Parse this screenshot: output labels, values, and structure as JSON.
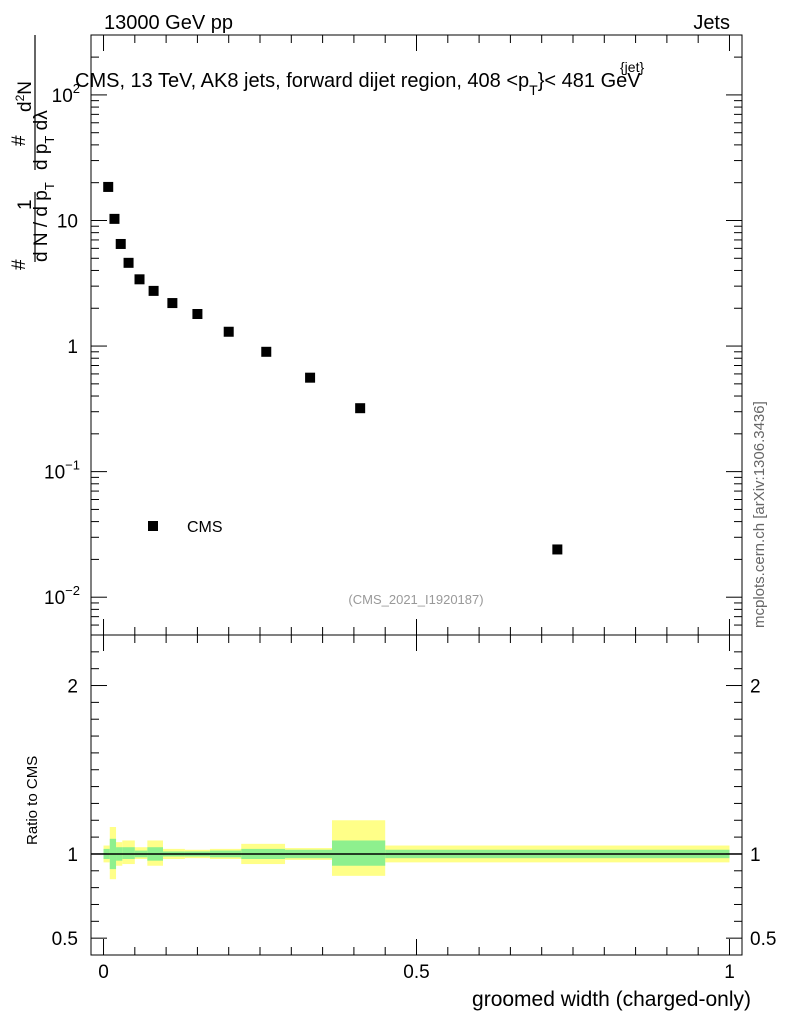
{
  "header": {
    "left": "13000 GeV pp",
    "right": "Jets",
    "side_label": "mcplots.cern.ch [arXiv:1306.3436]"
  },
  "chart_data": [
    {
      "type": "scatter",
      "title_prefix": "CMS, 13 TeV, AK8 jets, forward dijet region, 408 <p",
      "title_sub": "T",
      "title_sup": "{jet}",
      "title_suffix": "}< 481 GeV",
      "ylabel": "# 1/(d N / d p_T #) d²N/(d p_T d λ)",
      "yscale": "log",
      "ylim": [
        0.005,
        300
      ],
      "xlim": [
        -0.02,
        1.02
      ],
      "yticks": [
        {
          "value": 0.01,
          "base": "10",
          "exp": "−2"
        },
        {
          "value": 0.1,
          "base": "10",
          "exp": "−1"
        },
        {
          "value": 1,
          "label": "1"
        },
        {
          "value": 10,
          "label": "10"
        },
        {
          "value": 100,
          "base": "10",
          "exp": "2"
        }
      ],
      "series": [
        {
          "name": "CMS",
          "marker": "square",
          "x": [
            0.0075,
            0.0175,
            0.0275,
            0.04,
            0.0575,
            0.08,
            0.11,
            0.15,
            0.2,
            0.26,
            0.33,
            0.41,
            0.725
          ],
          "y": [
            18.5,
            10.3,
            6.5,
            4.6,
            3.4,
            2.75,
            2.2,
            1.8,
            1.3,
            0.9,
            0.56,
            0.32,
            0.024
          ]
        }
      ],
      "legend": {
        "entries": [
          "CMS"
        ],
        "position": "bottom-left"
      },
      "watermark": "(CMS_2021_I1920187)"
    },
    {
      "type": "ratio",
      "ylabel": "Ratio to CMS",
      "xlabel": "groomed width (charged-only)",
      "ylim": [
        0.4,
        2.3
      ],
      "yticks": [
        {
          "value": 0.5,
          "label": "0.5"
        },
        {
          "value": 1,
          "label": "1"
        },
        {
          "value": 2,
          "label": "2"
        }
      ],
      "xticks": [
        {
          "value": 0,
          "label": "0"
        },
        {
          "value": 0.5,
          "label": "0.5"
        },
        {
          "value": 1,
          "label": "1"
        }
      ],
      "reference_line": 1,
      "bands": [
        {
          "x": [
            0.0,
            0.01
          ],
          "stat": [
            0.97,
            1.03
          ],
          "total": [
            0.95,
            1.05
          ]
        },
        {
          "x": [
            0.01,
            0.02
          ],
          "stat": [
            0.91,
            1.09
          ],
          "total": [
            0.85,
            1.16
          ]
        },
        {
          "x": [
            0.02,
            0.03
          ],
          "stat": [
            0.96,
            1.04
          ],
          "total": [
            0.93,
            1.07
          ]
        },
        {
          "x": [
            0.03,
            0.05
          ],
          "stat": [
            0.97,
            1.04
          ],
          "total": [
            0.94,
            1.08
          ]
        },
        {
          "x": [
            0.05,
            0.07
          ],
          "stat": [
            0.98,
            1.02
          ],
          "total": [
            0.97,
            1.04
          ]
        },
        {
          "x": [
            0.07,
            0.095
          ],
          "stat": [
            0.96,
            1.04
          ],
          "total": [
            0.93,
            1.08
          ]
        },
        {
          "x": [
            0.095,
            0.13
          ],
          "stat": [
            0.985,
            1.015
          ],
          "total": [
            0.97,
            1.03
          ]
        },
        {
          "x": [
            0.13,
            0.17
          ],
          "stat": [
            0.985,
            1.015
          ],
          "total": [
            0.975,
            1.025
          ]
        },
        {
          "x": [
            0.17,
            0.22
          ],
          "stat": [
            0.98,
            1.02
          ],
          "total": [
            0.97,
            1.03
          ]
        },
        {
          "x": [
            0.22,
            0.29
          ],
          "stat": [
            0.97,
            1.03
          ],
          "total": [
            0.94,
            1.06
          ]
        },
        {
          "x": [
            0.29,
            0.365
          ],
          "stat": [
            0.975,
            1.025
          ],
          "total": [
            0.965,
            1.035
          ]
        },
        {
          "x": [
            0.365,
            0.45
          ],
          "stat": [
            0.93,
            1.08
          ],
          "total": [
            0.87,
            1.2
          ]
        },
        {
          "x": [
            0.45,
            1.0
          ],
          "stat": [
            0.975,
            1.025
          ],
          "total": [
            0.95,
            1.05
          ]
        }
      ],
      "colors": {
        "stat": "#8ef08e",
        "total": "#ffff88"
      }
    }
  ]
}
